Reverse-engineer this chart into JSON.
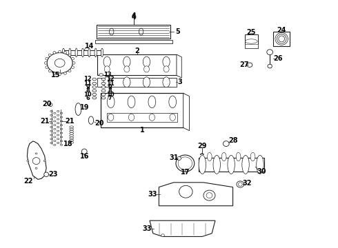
{
  "background_color": "#ffffff",
  "line_color": "#1a1a1a",
  "label_color": "#000000",
  "label_fontsize": 7,
  "fig_width": 4.9,
  "fig_height": 3.6,
  "dpi": 100
}
